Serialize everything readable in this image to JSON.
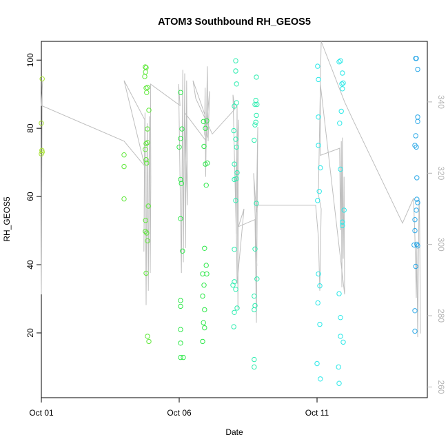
{
  "chart_data": {
    "type": "scatter",
    "title": "ATOM3 Southbound RH_GEOS5",
    "xlabel": "Date",
    "ylabel": "RH_GEOS5",
    "xlim": [
      0.0,
      14.0
    ],
    "ylim": [
      1.0,
      105.5
    ],
    "y2lim": [
      257.0,
      357.0
    ],
    "x_ticks": [
      {
        "value": 0,
        "label": "Oct 01"
      },
      {
        "value": 5,
        "label": "Oct 06"
      },
      {
        "value": 10,
        "label": "Oct 11"
      }
    ],
    "y_ticks": [
      20,
      40,
      60,
      80,
      100
    ],
    "y2_ticks": [
      260,
      280,
      300,
      320,
      340
    ],
    "grid": false,
    "background": "#ffffff",
    "secondary_line_color": "#bebebe",
    "right_axis_color": "#b3b3b3",
    "series": [
      {
        "color": "#a6e22e",
        "points": [
          [
            0.03,
            94.5
          ],
          [
            0.0,
            81.5
          ],
          [
            0.02,
            73.5
          ],
          [
            0.03,
            73
          ],
          [
            0.0,
            72.5
          ]
        ]
      },
      {
        "color": "#5fe83a",
        "points": [
          [
            3.0,
            72.2
          ],
          [
            3.0,
            68.8
          ],
          [
            3.0,
            59.3
          ],
          [
            3.77,
            98
          ],
          [
            3.8,
            97.8
          ],
          [
            3.78,
            96.5
          ],
          [
            3.75,
            95.2
          ],
          [
            3.85,
            92
          ],
          [
            3.8,
            91.8
          ],
          [
            3.82,
            90.5
          ],
          [
            3.9,
            85.3
          ],
          [
            3.85,
            79.8
          ],
          [
            3.85,
            75.8
          ],
          [
            3.8,
            75.5
          ],
          [
            3.77,
            73.8
          ],
          [
            3.8,
            70.8
          ],
          [
            3.82,
            69.8
          ],
          [
            3.78,
            53
          ],
          [
            3.77,
            49.8
          ],
          [
            3.82,
            49.3
          ],
          [
            3.88,
            57.2
          ],
          [
            3.85,
            47
          ],
          [
            3.8,
            37.5
          ],
          [
            3.85,
            19
          ],
          [
            3.9,
            17.5
          ]
        ]
      },
      {
        "color": "#2ee84a",
        "points": [
          [
            5.05,
            90.5
          ],
          [
            5.1,
            79.8
          ],
          [
            5.05,
            77
          ],
          [
            5.0,
            74.5
          ],
          [
            5.05,
            65
          ],
          [
            5.08,
            63.8
          ],
          [
            5.05,
            53.5
          ],
          [
            5.12,
            44
          ],
          [
            5.05,
            29.5
          ],
          [
            5.05,
            27.8
          ],
          [
            5.05,
            21
          ],
          [
            5.05,
            17
          ],
          [
            5.05,
            12.8
          ],
          [
            5.15,
            12.8
          ],
          [
            5.88,
            82
          ],
          [
            6.0,
            82.2
          ],
          [
            5.95,
            80
          ],
          [
            5.9,
            74.7
          ],
          [
            5.95,
            69.5
          ],
          [
            6.02,
            69.8
          ],
          [
            5.98,
            63.3
          ],
          [
            5.92,
            44.8
          ],
          [
            5.98,
            39.8
          ],
          [
            5.85,
            37.3
          ],
          [
            6.0,
            37.3
          ],
          [
            5.9,
            34
          ],
          [
            5.85,
            30.8
          ],
          [
            5.92,
            26.8
          ],
          [
            5.88,
            23
          ],
          [
            5.92,
            21.5
          ],
          [
            5.85,
            17.5
          ]
        ]
      },
      {
        "color": "#2eedb0",
        "points": [
          [
            7.05,
            99.8
          ],
          [
            7.05,
            96.8
          ],
          [
            7.08,
            93
          ],
          [
            7.08,
            87.5
          ],
          [
            7.0,
            86.5
          ],
          [
            6.98,
            79.3
          ],
          [
            7.05,
            76.8
          ],
          [
            7.08,
            74.5
          ],
          [
            7.0,
            69.5
          ],
          [
            7.0,
            65
          ],
          [
            7.1,
            67
          ],
          [
            7.07,
            65.2
          ],
          [
            7.05,
            58.8
          ],
          [
            7.0,
            44.5
          ],
          [
            7.0,
            35
          ],
          [
            6.95,
            34
          ],
          [
            7.05,
            32.8
          ],
          [
            7.1,
            27.3
          ],
          [
            7.0,
            26
          ],
          [
            6.98,
            21.8
          ],
          [
            7.8,
            95
          ],
          [
            7.78,
            88.2
          ],
          [
            7.82,
            87
          ],
          [
            7.75,
            87
          ],
          [
            7.8,
            83.8
          ],
          [
            7.78,
            81.8
          ],
          [
            7.75,
            81
          ],
          [
            7.72,
            76.5
          ],
          [
            7.8,
            58
          ],
          [
            7.75,
            44.6
          ],
          [
            7.82,
            35.8
          ],
          [
            7.72,
            30.8
          ],
          [
            7.75,
            28
          ],
          [
            7.72,
            26.8
          ],
          [
            7.72,
            12.2
          ],
          [
            7.72,
            10
          ]
        ]
      },
      {
        "color": "#2ae8e8",
        "points": [
          [
            10.02,
            98.2
          ],
          [
            10.05,
            94.3
          ],
          [
            10.05,
            83.3
          ],
          [
            10.05,
            75
          ],
          [
            10.12,
            68.4
          ],
          [
            10.08,
            61.5
          ],
          [
            10.02,
            58.8
          ],
          [
            10.05,
            37.3
          ],
          [
            10.1,
            33.8
          ],
          [
            10.03,
            28.8
          ],
          [
            10.1,
            22.5
          ],
          [
            10.0,
            11
          ],
          [
            10.12,
            6.5
          ],
          [
            10.8,
            99.5
          ],
          [
            10.85,
            99.8
          ],
          [
            10.92,
            96.2
          ],
          [
            10.95,
            93.3
          ],
          [
            10.9,
            93
          ],
          [
            10.92,
            91.6
          ],
          [
            10.88,
            85
          ],
          [
            10.82,
            81.5
          ],
          [
            10.85,
            68
          ],
          [
            10.98,
            56
          ],
          [
            10.92,
            52.5
          ],
          [
            10.92,
            51.5
          ],
          [
            10.8,
            31.5
          ],
          [
            10.85,
            24.5
          ],
          [
            10.85,
            19
          ],
          [
            10.95,
            17.3
          ],
          [
            10.78,
            10
          ],
          [
            10.8,
            5.2
          ]
        ]
      },
      {
        "color": "#2aa8e8",
        "points": [
          [
            13.58,
            100.5
          ],
          [
            13.6,
            100.5
          ],
          [
            13.65,
            97.3
          ],
          [
            13.58,
            77.8
          ],
          [
            13.55,
            75
          ],
          [
            13.6,
            74.5
          ],
          [
            13.65,
            83.3
          ],
          [
            13.65,
            82
          ],
          [
            13.62,
            65.5
          ],
          [
            13.62,
            59.2
          ],
          [
            13.65,
            58.2
          ],
          [
            13.6,
            56
          ],
          [
            13.55,
            53.2
          ],
          [
            13.55,
            50
          ],
          [
            13.62,
            46
          ],
          [
            13.52,
            45.8
          ],
          [
            13.65,
            45.5
          ],
          [
            13.58,
            39.5
          ],
          [
            13.55,
            26.5
          ],
          [
            13.55,
            20.5
          ]
        ]
      }
    ],
    "secondary_line": [
      [
        0.0,
        286
      ],
      [
        0.03,
        344
      ],
      [
        0.05,
        346
      ],
      [
        0.0,
        339
      ],
      [
        3.0,
        329
      ],
      [
        3.75,
        322
      ],
      [
        3.0,
        346
      ],
      [
        3.75,
        335
      ],
      [
        3.72,
        298
      ],
      [
        3.76,
        337
      ],
      [
        3.8,
        283
      ],
      [
        3.84,
        334
      ],
      [
        3.88,
        287
      ],
      [
        3.92,
        336
      ],
      [
        3.95,
        292
      ],
      [
        3.97,
        318
      ],
      [
        3.96,
        345
      ],
      [
        5.03,
        339
      ],
      [
        4.98,
        345
      ],
      [
        5.08,
        292
      ],
      [
        5.13,
        349
      ],
      [
        5.15,
        295
      ],
      [
        5.2,
        348
      ],
      [
        5.23,
        299
      ],
      [
        5.27,
        346
      ],
      [
        5.3,
        311
      ],
      [
        5.2,
        337
      ],
      [
        5.98,
        329
      ],
      [
        5.92,
        331
      ],
      [
        5.94,
        344
      ],
      [
        5.96,
        319
      ],
      [
        6.02,
        350
      ],
      [
        6.05,
        329
      ],
      [
        6.1,
        343
      ],
      [
        5.98,
        332
      ],
      [
        6.02,
        330
      ],
      [
        5.95,
        336
      ],
      [
        5.5,
        346
      ],
      [
        5.6,
        341
      ],
      [
        6.2,
        331
      ],
      [
        7.02,
        338
      ],
      [
        6.95,
        342
      ],
      [
        7.07,
        303
      ],
      [
        7.1,
        339
      ],
      [
        7.13,
        282
      ],
      [
        7.15,
        335
      ],
      [
        7.05,
        318
      ],
      [
        7.1,
        289
      ],
      [
        7.35,
        310
      ],
      [
        7.15,
        305
      ],
      [
        7.75,
        307
      ],
      [
        7.8,
        278
      ],
      [
        7.85,
        333
      ],
      [
        7.78,
        302
      ],
      [
        7.82,
        294
      ],
      [
        7.7,
        320
      ],
      [
        7.8,
        309
      ],
      [
        7.85,
        311
      ],
      [
        9.95,
        311
      ],
      [
        10.05,
        302
      ],
      [
        10.1,
        287
      ],
      [
        10.15,
        310
      ],
      [
        10.05,
        314
      ],
      [
        10.12,
        345
      ],
      [
        10.12,
        325
      ],
      [
        10.82,
        327
      ],
      [
        10.85,
        304
      ],
      [
        10.88,
        329
      ],
      [
        10.9,
        288
      ],
      [
        10.92,
        330
      ],
      [
        10.95,
        296
      ],
      [
        10.98,
        319
      ],
      [
        11.0,
        286
      ],
      [
        10.12,
        345
      ],
      [
        10.15,
        357
      ],
      [
        11.0,
        340
      ],
      [
        11.3,
        335
      ],
      [
        13.1,
        306
      ],
      [
        13.5,
        313
      ],
      [
        13.55,
        302
      ],
      [
        13.6,
        285
      ],
      [
        13.62,
        300
      ],
      [
        13.65,
        274
      ],
      [
        13.7,
        313
      ],
      [
        13.72,
        307
      ],
      [
        13.75,
        275
      ]
    ]
  }
}
